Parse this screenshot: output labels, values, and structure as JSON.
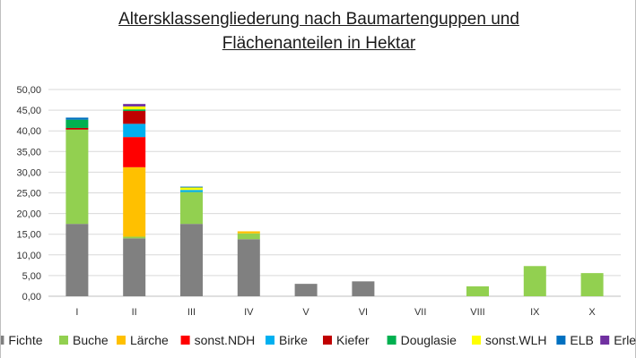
{
  "chart_data": {
    "type": "bar",
    "stacked": true,
    "title_lines": [
      "Altersklassengliederung nach Baumartenguppen und",
      "Flächenanteilen in Hektar"
    ],
    "categories": [
      "I",
      "II",
      "III",
      "IV",
      "V",
      "VI",
      "VII",
      "VIII",
      "IX",
      "X"
    ],
    "ylim": [
      0,
      50
    ],
    "yticks": [
      "0,00",
      "5,00",
      "10,00",
      "15,00",
      "20,00",
      "25,00",
      "30,00",
      "35,00",
      "40,00",
      "45,00",
      "50,00"
    ],
    "grid": true,
    "legend_position": "bottom",
    "series": [
      {
        "name": "Fichte",
        "color": "#808080",
        "values": [
          17.5,
          14.0,
          17.5,
          13.8,
          3.0,
          3.6,
          0,
          0,
          0,
          0
        ]
      },
      {
        "name": "Buche",
        "color": "#92d050",
        "values": [
          22.8,
          0.4,
          7.7,
          1.4,
          0,
          0,
          0,
          2.4,
          7.3,
          5.6
        ]
      },
      {
        "name": "Lärche",
        "color": "#ffc000",
        "values": [
          0,
          16.8,
          0,
          0.5,
          0,
          0,
          0,
          0,
          0,
          0
        ]
      },
      {
        "name": "sonst.NDH",
        "color": "#ff0000",
        "values": [
          0,
          7.3,
          0,
          0,
          0,
          0,
          0,
          0,
          0,
          0
        ]
      },
      {
        "name": "Birke",
        "color": "#00b0f0",
        "values": [
          0,
          3.2,
          0.5,
          0,
          0,
          0,
          0,
          0,
          0,
          0
        ]
      },
      {
        "name": "Kiefer",
        "color": "#c00000",
        "values": [
          0.4,
          3.1,
          0,
          0,
          0,
          0,
          0,
          0,
          0,
          0
        ]
      },
      {
        "name": "Douglasie",
        "color": "#00b050",
        "values": [
          2.0,
          0.4,
          0,
          0,
          0,
          0,
          0,
          0,
          0,
          0
        ]
      },
      {
        "name": "sonst.WLH",
        "color": "#ffff00",
        "values": [
          0,
          0.7,
          0.6,
          0,
          0,
          0,
          0,
          0,
          0,
          0
        ]
      },
      {
        "name": "ELB",
        "color": "#0070c0",
        "values": [
          0.5,
          0,
          0.2,
          0,
          0,
          0,
          0,
          0,
          0,
          0
        ]
      },
      {
        "name": "Erle",
        "color": "#7030a0",
        "values": [
          0,
          0.6,
          0,
          0,
          0,
          0,
          0,
          0,
          0,
          0
        ]
      }
    ]
  }
}
